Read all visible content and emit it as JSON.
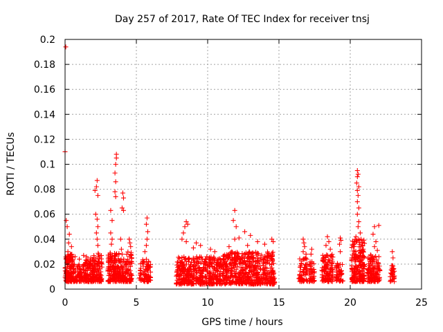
{
  "chart_data": {
    "type": "scatter",
    "title": "Day 257 of 2017, Rate Of TEC Index for receiver tnsj",
    "xlabel": "GPS time / hours",
    "ylabel": "ROTI / TECUs",
    "xlim": [
      0,
      25
    ],
    "ylim": [
      0,
      0.2
    ],
    "x_ticks": [
      0,
      5,
      10,
      15,
      20,
      25
    ],
    "x_tick_labels": [
      "0",
      "5",
      "10",
      "15",
      "20",
      "25"
    ],
    "y_ticks": [
      0,
      0.02,
      0.04,
      0.06,
      0.08,
      0.1,
      0.12,
      0.14,
      0.16,
      0.18,
      0.2
    ],
    "y_tick_labels": [
      "0",
      "0.02",
      "0.04",
      "0.06",
      "0.08",
      "0.1",
      "0.12",
      "0.14",
      "0.16",
      "0.18",
      "0.2"
    ],
    "grid": true,
    "marker": "+",
    "marker_color": "#ff0000",
    "series": [
      {
        "name": "ROTI",
        "clusters": [
          {
            "x": [
              0.0,
              0.6
            ],
            "y": [
              0.006,
              0.028
            ],
            "n": 140,
            "hi": [
              [
                0.05,
                0.194
              ],
              [
                0.0,
                0.11
              ],
              [
                0.08,
                0.055
              ],
              [
                0.15,
                0.05
              ],
              [
                0.3,
                0.044
              ],
              [
                0.25,
                0.037
              ],
              [
                0.45,
                0.034
              ],
              [
                0.2,
                0.03
              ]
            ]
          },
          {
            "x": [
              0.6,
              1.2
            ],
            "y": [
              0.006,
              0.02
            ],
            "n": 60,
            "hi": [
              [
                0.7,
                0.026
              ],
              [
                1.0,
                0.024
              ]
            ]
          },
          {
            "x": [
              1.2,
              2.0
            ],
            "y": [
              0.006,
              0.024
            ],
            "n": 110,
            "hi": [
              [
                1.3,
                0.027
              ],
              [
                1.5,
                0.026
              ],
              [
                1.8,
                0.025
              ]
            ]
          },
          {
            "x": [
              2.0,
              2.6
            ],
            "y": [
              0.006,
              0.03
            ],
            "n": 90,
            "hi": [
              [
                2.1,
                0.079
              ],
              [
                2.25,
                0.087
              ],
              [
                2.2,
                0.082
              ],
              [
                2.3,
                0.075
              ],
              [
                2.15,
                0.06
              ],
              [
                2.25,
                0.056
              ],
              [
                2.3,
                0.05
              ],
              [
                2.2,
                0.045
              ],
              [
                2.25,
                0.04
              ],
              [
                2.3,
                0.035
              ]
            ]
          },
          {
            "x": [
              3.0,
              3.8
            ],
            "y": [
              0.006,
              0.03
            ],
            "n": 140,
            "hi": [
              [
                3.6,
                0.108
              ],
              [
                3.6,
                0.105
              ],
              [
                3.55,
                0.1
              ],
              [
                3.5,
                0.093
              ],
              [
                3.55,
                0.086
              ],
              [
                3.5,
                0.078
              ],
              [
                3.55,
                0.074
              ],
              [
                3.2,
                0.063
              ],
              [
                3.3,
                0.055
              ],
              [
                3.2,
                0.045
              ],
              [
                3.3,
                0.04
              ],
              [
                3.25,
                0.036
              ]
            ]
          },
          {
            "x": [
              3.8,
              4.3
            ],
            "y": [
              0.006,
              0.025
            ],
            "n": 60,
            "hi": [
              [
                4.05,
                0.077
              ],
              [
                4.1,
                0.073
              ],
              [
                4.0,
                0.065
              ],
              [
                4.1,
                0.063
              ],
              [
                3.9,
                0.04
              ],
              [
                3.95,
                0.032
              ],
              [
                4.0,
                0.028
              ]
            ]
          },
          {
            "x": [
              4.3,
              4.7
            ],
            "y": [
              0.006,
              0.03
            ],
            "n": 55,
            "hi": [
              [
                4.5,
                0.04
              ],
              [
                4.55,
                0.037
              ],
              [
                4.6,
                0.034
              ]
            ]
          },
          {
            "x": [
              5.2,
              6.0
            ],
            "y": [
              0.006,
              0.025
            ],
            "n": 80,
            "hi": [
              [
                5.75,
                0.057
              ],
              [
                5.7,
                0.052
              ],
              [
                5.8,
                0.046
              ],
              [
                5.75,
                0.04
              ],
              [
                5.7,
                0.035
              ],
              [
                5.6,
                0.03
              ]
            ]
          },
          {
            "x": [
              7.8,
              11.0
            ],
            "y": [
              0.004,
              0.026
            ],
            "n": 420,
            "hi": [
              [
                8.5,
                0.054
              ],
              [
                8.6,
                0.052
              ],
              [
                8.4,
                0.05
              ],
              [
                8.3,
                0.045
              ],
              [
                8.2,
                0.04
              ],
              [
                8.5,
                0.038
              ],
              [
                9.2,
                0.037
              ],
              [
                9.5,
                0.035
              ],
              [
                9.0,
                0.033
              ],
              [
                10.2,
                0.032
              ],
              [
                10.5,
                0.03
              ]
            ]
          },
          {
            "x": [
              11.0,
              14.7
            ],
            "y": [
              0.004,
              0.03
            ],
            "n": 520,
            "hi": [
              [
                11.9,
                0.063
              ],
              [
                11.8,
                0.055
              ],
              [
                12.0,
                0.05
              ],
              [
                12.6,
                0.046
              ],
              [
                13.0,
                0.043
              ],
              [
                12.2,
                0.041
              ],
              [
                11.9,
                0.04
              ],
              [
                13.5,
                0.038
              ],
              [
                14.0,
                0.036
              ],
              [
                14.5,
                0.04
              ],
              [
                14.6,
                0.038
              ],
              [
                12.8,
                0.035
              ],
              [
                11.5,
                0.034
              ]
            ]
          },
          {
            "x": [
              16.4,
              17.0
            ],
            "y": [
              0.006,
              0.025
            ],
            "n": 60,
            "hi": [
              [
                16.7,
                0.04
              ],
              [
                16.75,
                0.037
              ],
              [
                16.8,
                0.034
              ],
              [
                16.7,
                0.03
              ],
              [
                16.9,
                0.028
              ]
            ]
          },
          {
            "x": [
              17.1,
              17.5
            ],
            "y": [
              0.006,
              0.022
            ],
            "n": 40,
            "hi": [
              [
                17.3,
                0.032
              ],
              [
                17.25,
                0.028
              ]
            ]
          },
          {
            "x": [
              18.0,
              18.8
            ],
            "y": [
              0.006,
              0.028
            ],
            "n": 110,
            "hi": [
              [
                18.4,
                0.042
              ],
              [
                18.5,
                0.038
              ],
              [
                18.3,
                0.035
              ],
              [
                18.6,
                0.032
              ]
            ]
          },
          {
            "x": [
              19.0,
              19.5
            ],
            "y": [
              0.006,
              0.022
            ],
            "n": 50,
            "hi": [
              [
                19.3,
                0.041
              ],
              [
                19.35,
                0.039
              ],
              [
                19.25,
                0.036
              ],
              [
                19.3,
                0.03
              ]
            ]
          },
          {
            "x": [
              20.1,
              21.0
            ],
            "y": [
              0.006,
              0.04
            ],
            "n": 200,
            "hi": [
              [
                20.5,
                0.095
              ],
              [
                20.55,
                0.092
              ],
              [
                20.5,
                0.09
              ],
              [
                20.45,
                0.085
              ],
              [
                20.6,
                0.082
              ],
              [
                20.5,
                0.079
              ],
              [
                20.55,
                0.075
              ],
              [
                20.5,
                0.07
              ],
              [
                20.6,
                0.065
              ],
              [
                20.5,
                0.06
              ],
              [
                20.6,
                0.054
              ],
              [
                20.55,
                0.05
              ],
              [
                20.7,
                0.045
              ],
              [
                20.4,
                0.042
              ]
            ]
          },
          {
            "x": [
              21.2,
              22.1
            ],
            "y": [
              0.006,
              0.028
            ],
            "n": 120,
            "hi": [
              [
                21.7,
                0.05
              ],
              [
                22.0,
                0.051
              ],
              [
                21.6,
                0.044
              ],
              [
                21.8,
                0.038
              ],
              [
                21.7,
                0.034
              ],
              [
                21.9,
                0.031
              ]
            ]
          },
          {
            "x": [
              22.8,
              23.1
            ],
            "y": [
              0.006,
              0.02
            ],
            "n": 30,
            "hi": [
              [
                22.95,
                0.03
              ],
              [
                23.0,
                0.025
              ]
            ]
          }
        ]
      }
    ]
  }
}
